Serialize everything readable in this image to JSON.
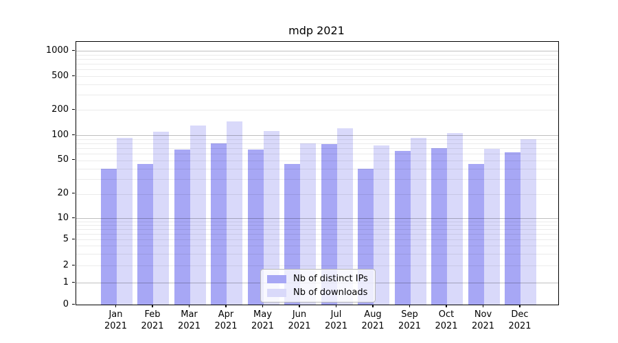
{
  "chart_data": {
    "type": "bar",
    "title": "mdp 2021",
    "year": "2021",
    "categories": [
      "Jan",
      "Feb",
      "Mar",
      "Apr",
      "May",
      "Jun",
      "Jul",
      "Aug",
      "Sep",
      "Oct",
      "Nov",
      "Dec"
    ],
    "series": [
      {
        "name": "Nb of distinct IPs",
        "color": "#a7a7f5",
        "values": [
          40,
          45,
          67,
          80,
          67,
          45,
          78,
          40,
          65,
          70,
          45,
          62
        ]
      },
      {
        "name": "Nb of downloads",
        "color": "#d9d9fa",
        "values": [
          92,
          110,
          130,
          145,
          112,
          79,
          120,
          75,
          93,
          105,
          68,
          90
        ]
      }
    ],
    "xlabel": "",
    "ylabel": "",
    "yscale": "asinh-log (log-like axis that includes 0)",
    "ylim": [
      0,
      1000
    ],
    "yticks": [
      0,
      1,
      2,
      5,
      10,
      20,
      50,
      100,
      200,
      500,
      1000
    ],
    "major_gridlines": [
      1,
      10,
      100,
      1000
    ],
    "minor_gridlines": [
      2,
      3,
      4,
      5,
      6,
      7,
      8,
      9,
      20,
      30,
      40,
      50,
      60,
      70,
      80,
      90,
      200,
      300,
      400,
      500,
      600,
      700,
      800,
      900
    ],
    "grid": "horizontal, drawn over bars",
    "legend_position": "lower center inside plot",
    "colors": {
      "axis": "#000000",
      "major_grid": "#bfbfbf",
      "minor_grid": "#eaeaea",
      "background": "#ffffff"
    }
  }
}
